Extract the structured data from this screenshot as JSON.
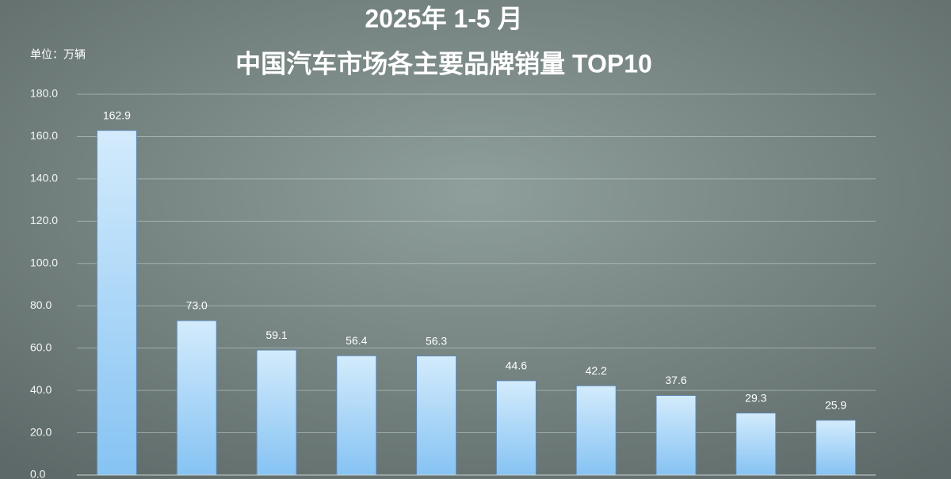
{
  "chart_data": {
    "type": "bar",
    "title": "2025年 1-5 月",
    "subtitle": "中国汽车市场各主要品牌销量  TOP10",
    "unit_label": "单位：万辆",
    "values": [
      162.9,
      73.0,
      59.1,
      56.4,
      56.3,
      44.6,
      42.2,
      37.6,
      29.3,
      25.9
    ],
    "value_labels": [
      "162.9",
      "73.0",
      "59.1",
      "56.4",
      "56.3",
      "44.6",
      "42.2",
      "37.6",
      "29.3",
      "25.9"
    ],
    "color": "#a9d7f8",
    "ylim": [
      0,
      180
    ],
    "yticks": [
      {
        "value": 0,
        "label": "0.0"
      },
      {
        "value": 20,
        "label": "20.0"
      },
      {
        "value": 40,
        "label": "40.0"
      },
      {
        "value": 60,
        "label": "60.0"
      },
      {
        "value": 80,
        "label": "80.0"
      },
      {
        "value": 100,
        "label": "100.0"
      },
      {
        "value": 120,
        "label": "120.0"
      },
      {
        "value": 140,
        "label": "140.0"
      },
      {
        "value": 160,
        "label": "160.0"
      },
      {
        "value": 180,
        "label": "180.0"
      }
    ],
    "grid": true
  }
}
